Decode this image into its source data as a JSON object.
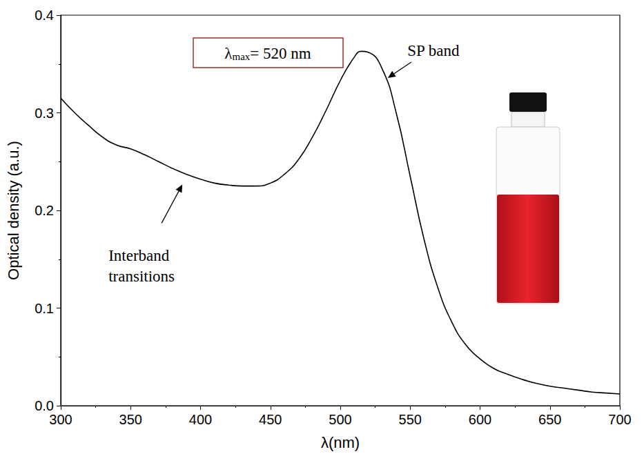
{
  "chart_data": {
    "type": "line",
    "x": [
      300,
      310,
      320,
      330,
      340,
      350,
      360,
      370,
      380,
      390,
      400,
      410,
      420,
      430,
      440,
      450,
      460,
      470,
      480,
      490,
      500,
      510,
      515,
      520,
      530,
      540,
      550,
      560,
      570,
      580,
      590,
      600,
      610,
      620,
      630,
      640,
      650,
      660,
      670,
      680,
      690,
      700
    ],
    "values": [
      0.315,
      0.3,
      0.287,
      0.275,
      0.267,
      0.263,
      0.257,
      0.25,
      0.243,
      0.237,
      0.232,
      0.228,
      0.226,
      0.225,
      0.225,
      0.228,
      0.237,
      0.252,
      0.275,
      0.303,
      0.333,
      0.357,
      0.363,
      0.362,
      0.345,
      0.3,
      0.235,
      0.17,
      0.12,
      0.085,
      0.062,
      0.048,
      0.038,
      0.032,
      0.027,
      0.023,
      0.02,
      0.018,
      0.016,
      0.014,
      0.013,
      0.012
    ],
    "color": "#000000",
    "x_label": "λ(nm)",
    "y_label": "Optical density (a.u.)",
    "xlim": [
      300,
      700
    ],
    "xticks": [
      300,
      350,
      400,
      450,
      500,
      550,
      600,
      650,
      700
    ],
    "ylim": [
      0,
      0.4
    ],
    "yticks": [
      {
        "value": 0,
        "label": "0.0"
      },
      0.1,
      0.2,
      0.3,
      0.4
    ],
    "grid": false,
    "boxed_annotation": {
      "text": "λ",
      "subscript": "max",
      "text_after": "= 520 nm"
    },
    "annotations": [
      {
        "text": "SP band",
        "x": 533,
        "y": 0.335
      },
      {
        "text": "Interband transitions",
        "x": 387,
        "y": 0.228
      }
    ]
  }
}
